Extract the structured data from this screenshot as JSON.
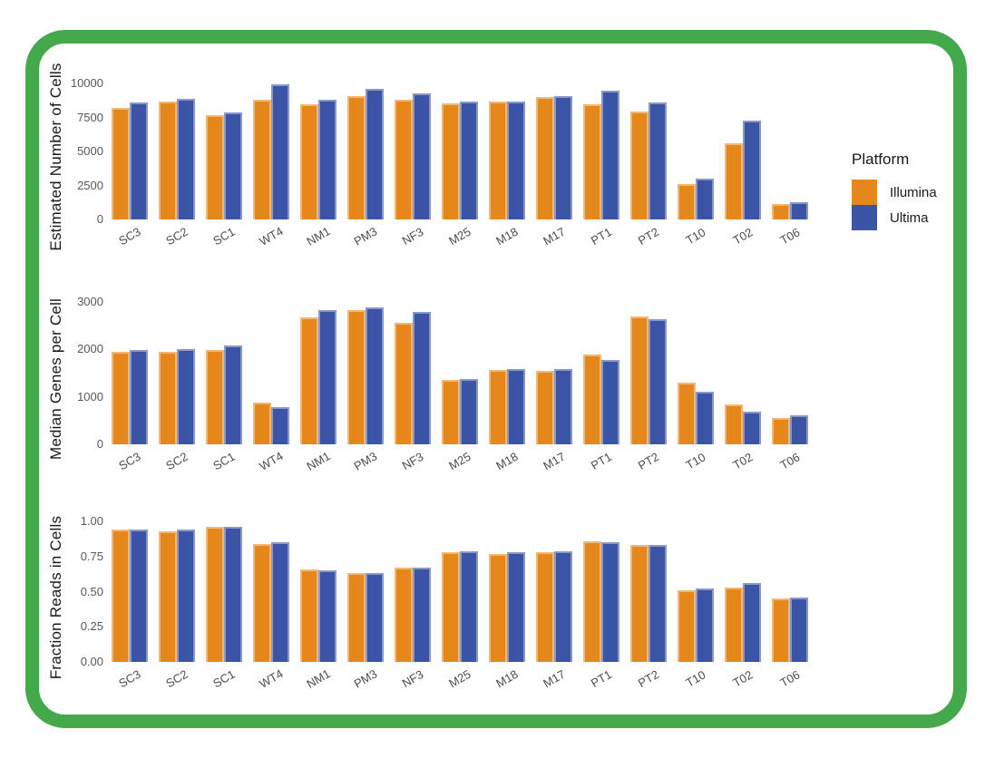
{
  "frame": {
    "border_color": "#43A94B"
  },
  "legend": {
    "title": "Platform",
    "items": [
      {
        "label": "Illumina",
        "color": "#E6871C"
      },
      {
        "label": "Ultima",
        "color": "#3C54A5"
      }
    ]
  },
  "chart_data": [
    {
      "type": "bar",
      "ylabel": "Estimated Number of Cells",
      "ylim": [
        0,
        10000
      ],
      "grid": false,
      "legend_position": "right",
      "yticks": [
        {
          "label": "0",
          "value": 0
        },
        {
          "label": "2500",
          "value": 2500
        },
        {
          "label": "5000",
          "value": 5000
        },
        {
          "label": "7500",
          "value": 7500
        },
        {
          "label": "10000",
          "value": 10000
        }
      ],
      "categories": [
        "SC3",
        "SC2",
        "SC1",
        "WT4",
        "NM1",
        "PM3",
        "NF3",
        "M25",
        "M18",
        "M17",
        "PT1",
        "PT2",
        "T10",
        "T02",
        "T06"
      ],
      "series": [
        {
          "name": "Illumina",
          "color": "#E6871C",
          "values": [
            8200,
            8650,
            7650,
            8800,
            8450,
            9100,
            8800,
            8550,
            8650,
            9000,
            8500,
            7950,
            2600,
            5600,
            1150
          ]
        },
        {
          "name": "Ultima",
          "color": "#3C54A5",
          "values": [
            8600,
            8900,
            7900,
            9950,
            8800,
            9600,
            9300,
            8650,
            8700,
            9100,
            9500,
            8600,
            3000,
            7300,
            1300
          ]
        }
      ]
    },
    {
      "type": "bar",
      "ylabel": "Median Genes per Cell",
      "ylim": [
        0,
        3000
      ],
      "grid": false,
      "yticks": [
        {
          "label": "0",
          "value": 0
        },
        {
          "label": "1000",
          "value": 1000
        },
        {
          "label": "2000",
          "value": 2000
        },
        {
          "label": "3000",
          "value": 3000
        }
      ],
      "categories": [
        "SC3",
        "SC2",
        "SC1",
        "WT4",
        "NM1",
        "PM3",
        "NF3",
        "M25",
        "M18",
        "M17",
        "PT1",
        "PT2",
        "T10",
        "T02",
        "T06"
      ],
      "series": [
        {
          "name": "Illumina",
          "color": "#E6871C",
          "values": [
            1950,
            1950,
            1990,
            870,
            2670,
            2830,
            2560,
            1360,
            1560,
            1550,
            1890,
            2700,
            1300,
            850,
            550
          ]
        },
        {
          "name": "Ultima",
          "color": "#3C54A5",
          "values": [
            1980,
            2010,
            2080,
            780,
            2820,
            2890,
            2790,
            1370,
            1590,
            1580,
            1770,
            2640,
            1100,
            680,
            610
          ]
        }
      ]
    },
    {
      "type": "bar",
      "ylabel": "Fraction Reads in Cells",
      "ylim": [
        0,
        1.0
      ],
      "grid": false,
      "yticks": [
        {
          "label": "0.00",
          "value": 0
        },
        {
          "label": "0.25",
          "value": 0.25
        },
        {
          "label": "0.50",
          "value": 0.5
        },
        {
          "label": "0.75",
          "value": 0.75
        },
        {
          "label": "1.00",
          "value": 1.0
        }
      ],
      "categories": [
        "SC3",
        "SC2",
        "SC1",
        "WT4",
        "NM1",
        "PM3",
        "NF3",
        "M25",
        "M18",
        "M17",
        "PT1",
        "PT2",
        "T10",
        "T02",
        "T06"
      ],
      "series": [
        {
          "name": "Illumina",
          "color": "#E6871C",
          "values": [
            0.94,
            0.93,
            0.96,
            0.84,
            0.66,
            0.63,
            0.67,
            0.78,
            0.77,
            0.78,
            0.86,
            0.83,
            0.51,
            0.53,
            0.45
          ]
        },
        {
          "name": "Ultima",
          "color": "#3C54A5",
          "values": [
            0.94,
            0.94,
            0.96,
            0.85,
            0.65,
            0.63,
            0.67,
            0.79,
            0.78,
            0.79,
            0.85,
            0.83,
            0.52,
            0.56,
            0.46
          ]
        }
      ]
    }
  ]
}
